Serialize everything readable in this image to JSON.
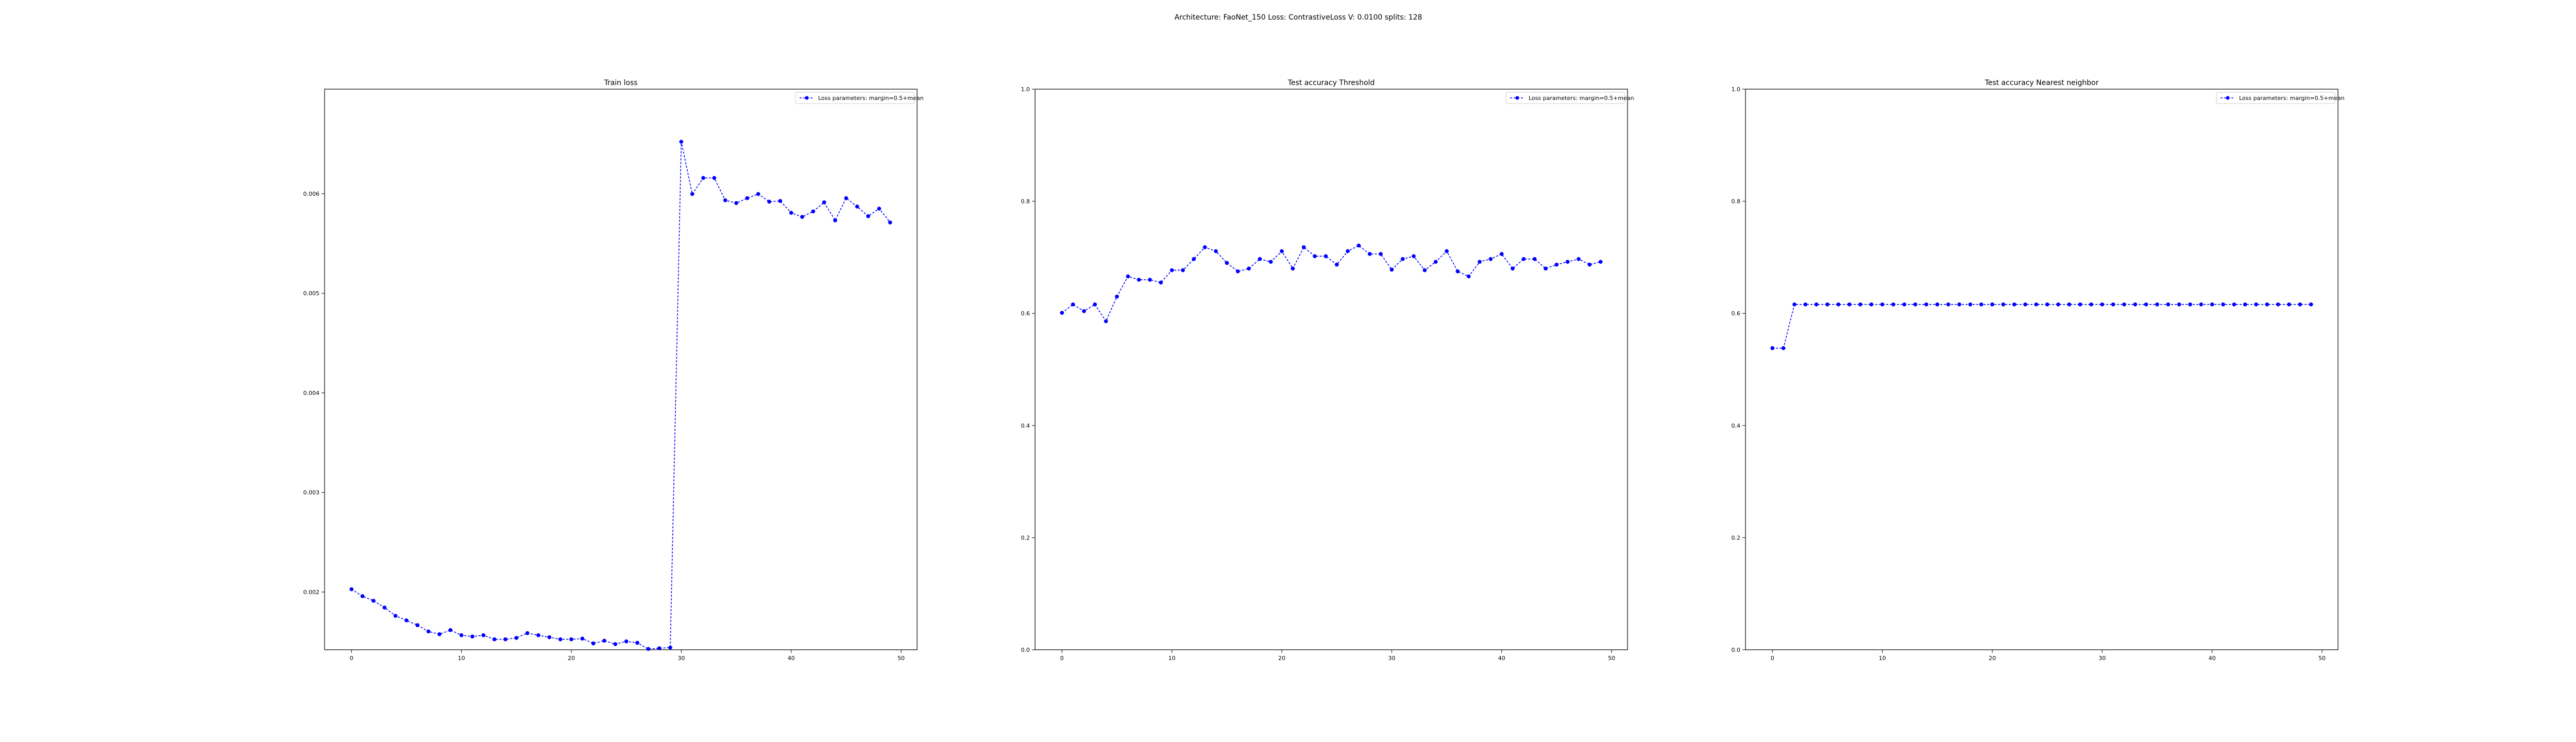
{
  "figure": {
    "suptitle": "Architecture: FaoNet_150 Loss: ContrastiveLoss V: 0.0100 splits: 128"
  },
  "chart_data": [
    {
      "type": "line",
      "title": "Train loss",
      "xlabel": "",
      "ylabel": "",
      "xlim": [
        -2.45,
        51.45
      ],
      "ylim": [
        0.00142,
        0.00705
      ],
      "xticks": [
        0,
        10,
        20,
        30,
        40,
        50
      ],
      "xtick_labels": [
        "0",
        "10",
        "20",
        "30",
        "40",
        "50"
      ],
      "yticks": [
        0.002,
        0.003,
        0.004,
        0.005,
        0.006
      ],
      "ytick_labels": [
        "0.002",
        "0.003",
        "0.004",
        "0.005",
        "0.006"
      ],
      "grid": false,
      "legend_position": "top-right",
      "series": [
        {
          "name": "Loss parameters: margin=0.5+mean",
          "color": "#0000ff",
          "x": [
            0,
            1,
            2,
            3,
            4,
            5,
            6,
            7,
            8,
            9,
            10,
            11,
            12,
            13,
            14,
            15,
            16,
            17,
            18,
            19,
            20,
            21,
            22,
            23,
            24,
            25,
            26,
            27,
            28,
            29,
            30,
            31,
            32,
            33,
            34,
            35,
            36,
            37,
            38,
            39,
            40,
            41,
            42,
            43,
            44,
            45,
            46,
            47,
            48,
            49
          ],
          "y": [
            0.002028,
            0.001958,
            0.001912,
            0.001844,
            0.001761,
            0.001715,
            0.001667,
            0.001604,
            0.001576,
            0.001618,
            0.001566,
            0.001553,
            0.001566,
            0.001525,
            0.001525,
            0.001539,
            0.001587,
            0.001566,
            0.001546,
            0.001525,
            0.001525,
            0.001532,
            0.001484,
            0.001511,
            0.001477,
            0.001504,
            0.00149,
            0.001428,
            0.001435,
            0.001442,
            0.006522,
            0.005997,
            0.006158,
            0.006158,
            0.005934,
            0.005906,
            0.005955,
            0.005997,
            0.00592,
            0.005927,
            0.005808,
            0.005767,
            0.005822,
            0.005913,
            0.005732,
            0.005955,
            0.005871,
            0.005774,
            0.00585,
            0.005711
          ]
        }
      ]
    },
    {
      "type": "line",
      "title": "Test accuracy Threshold",
      "xlabel": "",
      "ylabel": "",
      "xlim": [
        -2.45,
        51.45
      ],
      "ylim": [
        0.0,
        1.0
      ],
      "xticks": [
        0,
        10,
        20,
        30,
        40,
        50
      ],
      "xtick_labels": [
        "0",
        "10",
        "20",
        "30",
        "40",
        "50"
      ],
      "yticks": [
        0.0,
        0.2,
        0.4,
        0.6,
        0.8,
        1.0
      ],
      "ytick_labels": [
        "0.0",
        "0.2",
        "0.4",
        "0.6",
        "0.8",
        "1.0"
      ],
      "grid": false,
      "legend_position": "top-right",
      "series": [
        {
          "name": "Loss parameters: margin=0.5+mean",
          "color": "#0000ff",
          "x": [
            0,
            1,
            2,
            3,
            4,
            5,
            6,
            7,
            8,
            9,
            10,
            11,
            12,
            13,
            14,
            15,
            16,
            17,
            18,
            19,
            20,
            21,
            22,
            23,
            24,
            25,
            26,
            27,
            28,
            29,
            30,
            31,
            32,
            33,
            34,
            35,
            36,
            37,
            38,
            39,
            40,
            41,
            42,
            43,
            44,
            45,
            46,
            47,
            48,
            49
          ],
          "y": [
            0.601,
            0.616,
            0.604,
            0.616,
            0.586,
            0.63,
            0.666,
            0.66,
            0.66,
            0.655,
            0.677,
            0.677,
            0.697,
            0.718,
            0.711,
            0.69,
            0.675,
            0.68,
            0.697,
            0.692,
            0.711,
            0.68,
            0.718,
            0.702,
            0.702,
            0.687,
            0.711,
            0.721,
            0.706,
            0.706,
            0.678,
            0.697,
            0.702,
            0.677,
            0.692,
            0.711,
            0.675,
            0.666,
            0.692,
            0.697,
            0.706,
            0.68,
            0.697,
            0.697,
            0.68,
            0.687,
            0.692,
            0.697,
            0.687,
            0.692
          ]
        }
      ]
    },
    {
      "type": "line",
      "title": "Test accuracy Nearest neighbor",
      "xlabel": "",
      "ylabel": "",
      "xlim": [
        -2.45,
        51.45
      ],
      "ylim": [
        0.0,
        1.0
      ],
      "xticks": [
        0,
        10,
        20,
        30,
        40,
        50
      ],
      "xtick_labels": [
        "0",
        "10",
        "20",
        "30",
        "40",
        "50"
      ],
      "yticks": [
        0.0,
        0.2,
        0.4,
        0.6,
        0.8,
        1.0
      ],
      "ytick_labels": [
        "0.0",
        "0.2",
        "0.4",
        "0.6",
        "0.8",
        "1.0"
      ],
      "grid": false,
      "legend_position": "top-right",
      "series": [
        {
          "name": "Loss parameters: margin=0.5+mean",
          "color": "#0000ff",
          "x": [
            0,
            1,
            2,
            3,
            4,
            5,
            6,
            7,
            8,
            9,
            10,
            11,
            12,
            13,
            14,
            15,
            16,
            17,
            18,
            19,
            20,
            21,
            22,
            23,
            24,
            25,
            26,
            27,
            28,
            29,
            30,
            31,
            32,
            33,
            34,
            35,
            36,
            37,
            38,
            39,
            40,
            41,
            42,
            43,
            44,
            45,
            46,
            47,
            48,
            49
          ],
          "y": [
            0.538,
            0.538,
            0.616,
            0.616,
            0.616,
            0.616,
            0.616,
            0.616,
            0.616,
            0.616,
            0.616,
            0.616,
            0.616,
            0.616,
            0.616,
            0.616,
            0.616,
            0.616,
            0.616,
            0.616,
            0.616,
            0.616,
            0.616,
            0.616,
            0.616,
            0.616,
            0.616,
            0.616,
            0.616,
            0.616,
            0.616,
            0.616,
            0.616,
            0.616,
            0.616,
            0.616,
            0.616,
            0.616,
            0.616,
            0.616,
            0.616,
            0.616,
            0.616,
            0.616,
            0.616,
            0.616,
            0.616,
            0.616,
            0.616,
            0.616
          ]
        }
      ]
    }
  ]
}
